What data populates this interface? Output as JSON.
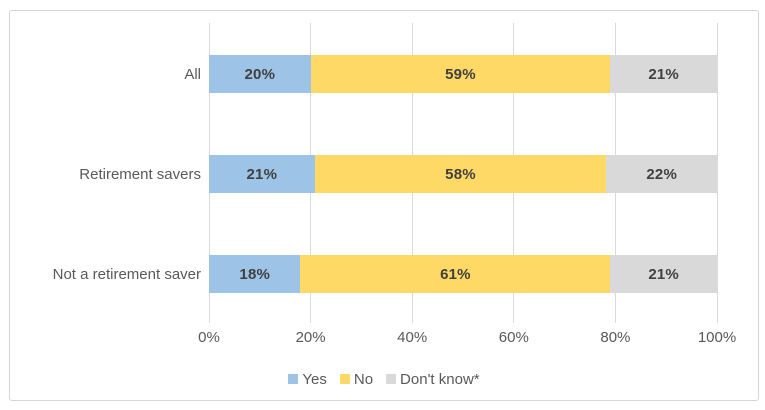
{
  "chart_data": {
    "type": "bar",
    "orientation": "horizontal",
    "stacked": true,
    "categories": [
      "All",
      "Retirement savers",
      "Not a retirement saver"
    ],
    "series": [
      {
        "name": "Yes",
        "color": "#9DC3E6",
        "values": [
          20,
          21,
          18
        ]
      },
      {
        "name": "No",
        "color": "#FFD966",
        "values": [
          59,
          58,
          61
        ]
      },
      {
        "name": "Don't know*",
        "color": "#D9D9D9",
        "values": [
          21,
          22,
          21
        ]
      }
    ],
    "data_label_suffix": "%",
    "xlabel": "",
    "ylabel": "",
    "x_axis": {
      "min": 0,
      "max": 100,
      "ticks": [
        "0%",
        "20%",
        "40%",
        "60%",
        "80%",
        "100%"
      ],
      "gridlines": true
    },
    "legend_position": "bottom",
    "legend_items": [
      "Yes",
      "No",
      "Don't know*"
    ]
  },
  "style": {
    "gridline_color": "#D9D9D9",
    "frame_border_color": "#D6D6D6",
    "data_label_color": "#404040",
    "axis_text_color": "#595959",
    "background": "#FFFFFF"
  }
}
